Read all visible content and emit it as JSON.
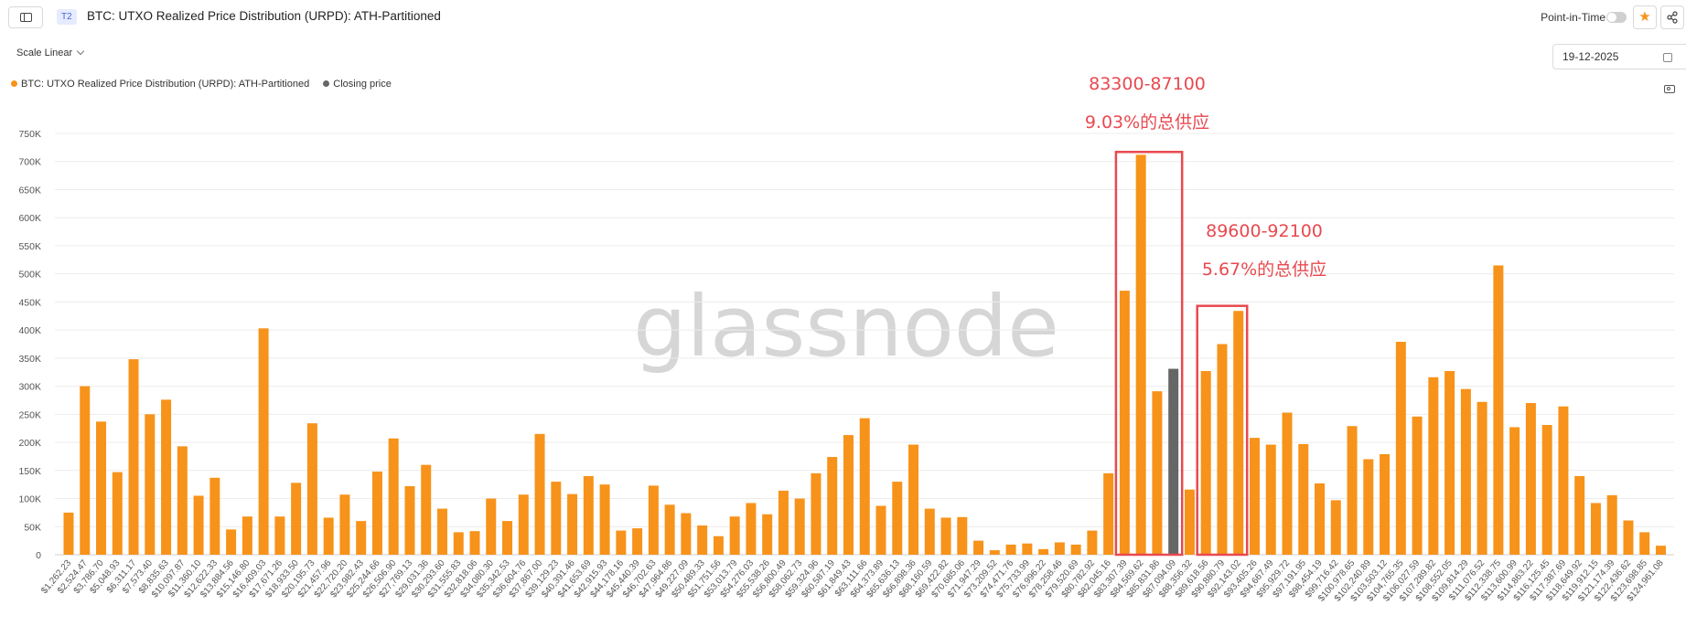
{
  "header": {
    "tier_badge": "T2",
    "title": "BTC: UTXO Realized Price Distribution (URPD): ATH-Partitioned",
    "point_in_time_label": "Point-in-Time",
    "point_in_time_enabled": false
  },
  "controls": {
    "scale_label": "Scale Linear",
    "date_value": "19-12-2025"
  },
  "legend": [
    {
      "label": "BTC: UTXO Realized Price Distribution (URPD): ATH-Partitioned",
      "color": "#f7931a"
    },
    {
      "label": "Closing price",
      "color": "#666666"
    }
  ],
  "watermark": "glassnode",
  "annotations": [
    {
      "range_label": "83300-87100",
      "supply_label": "9.03%的总供应"
    },
    {
      "range_label": "89600-92100",
      "supply_label": "5.67%的总供应"
    }
  ],
  "chart_data": {
    "type": "bar",
    "series_color": "#f7931a",
    "closing_price_color": "#666666",
    "annotation_color": "#e8494f",
    "grid": true,
    "ylim": [
      0,
      750000
    ],
    "y_ticks": [
      0,
      50000,
      100000,
      150000,
      200000,
      250000,
      300000,
      350000,
      400000,
      450000,
      500000,
      550000,
      600000,
      650000,
      700000,
      750000
    ],
    "y_tick_labels": [
      "0",
      "50K",
      "100K",
      "150K",
      "200K",
      "250K",
      "300K",
      "350K",
      "400K",
      "450K",
      "500K",
      "550K",
      "600K",
      "650K",
      "700K",
      "750K"
    ],
    "x_tick_labels": [
      "$1,262.23",
      "$2,524.47",
      "$3,786.70",
      "$5,048.93",
      "$6,311.17",
      "$7,573.40",
      "$8,835.63",
      "$10,097.87",
      "$11,360.10",
      "$12,622.33",
      "$13,884.56",
      "$15,146.80",
      "$16,409.03",
      "$17,671.26",
      "$18,933.50",
      "$20,195.73",
      "$21,457.96",
      "$22,720.20",
      "$23,982.43",
      "$25,244.66",
      "$26,506.90",
      "$27,769.13",
      "$29,031.36",
      "$30,293.60",
      "$31,555.83",
      "$32,818.06",
      "$34,080.30",
      "$35,342.53",
      "$36,604.76",
      "$37,867.00",
      "$39,129.23",
      "$40,391.46",
      "$41,653.69",
      "$42,915.93",
      "$44,178.16",
      "$45,440.39",
      "$46,702.63",
      "$47,964.86",
      "$49,227.09",
      "$50,489.33",
      "$51,751.56",
      "$53,013.79",
      "$54,276.03",
      "$55,538.26",
      "$56,800.49",
      "$58,062.73",
      "$59,324.96",
      "$60,587.19",
      "$61,849.43",
      "$63,111.66",
      "$64,373.89",
      "$65,636.13",
      "$66,898.36",
      "$68,160.59",
      "$69,422.82",
      "$70,685.06",
      "$71,947.29",
      "$73,209.52",
      "$74,471.76",
      "$75,733.99",
      "$76,996.22",
      "$78,258.46",
      "$79,520.69",
      "$80,782.92",
      "$82,045.16",
      "$83,307.39",
      "$84,569.62",
      "$85,831.86",
      "$87,094.09",
      "$88,356.32",
      "$89,618.56",
      "$90,880.79",
      "$92,143.02",
      "$93,405.26",
      "$94,667.49",
      "$95,929.72",
      "$97,191.95",
      "$98,454.19",
      "$99,716.42",
      "$100,978.65",
      "$102,240.89",
      "$103,503.12",
      "$104,765.35",
      "$106,027.59",
      "$107,289.82",
      "$108,552.05",
      "$109,814.29",
      "$111,076.52",
      "$112,338.75",
      "$113,600.99",
      "$114,863.22",
      "$116,125.45",
      "$117,387.69",
      "$118,649.92",
      "$119,912.15",
      "$121,174.39",
      "$122,436.62",
      "$123,698.85",
      "$124,961.08"
    ],
    "values": [
      75000,
      300000,
      237000,
      147000,
      348000,
      250000,
      276000,
      193000,
      105000,
      137000,
      45000,
      68000,
      403000,
      68000,
      128000,
      234000,
      66000,
      107000,
      60000,
      148000,
      207000,
      122000,
      160000,
      82000,
      40000,
      42000,
      100000,
      60000,
      107000,
      215000,
      130000,
      108000,
      140000,
      125000,
      43000,
      47000,
      123000,
      89000,
      74000,
      52000,
      33000,
      68000,
      92000,
      72000,
      114000,
      100000,
      145000,
      174000,
      213000,
      243000,
      87000,
      130000,
      196000,
      82000,
      66000,
      67000,
      25000,
      8000,
      18000,
      20000,
      10000,
      22000,
      18000,
      43000,
      145000,
      470000,
      712000,
      291000,
      331000,
      116000,
      327000,
      375000,
      434000,
      208000,
      196000,
      253000,
      197000,
      127000,
      97000,
      229000,
      170000,
      179000,
      379000,
      246000,
      316000,
      327000,
      295000,
      272000,
      515000,
      227000,
      270000,
      231000,
      264000,
      140000,
      92000,
      106000,
      61000,
      40000,
      16000
    ],
    "closing_price_index": 68,
    "highlight_ranges": [
      {
        "from_index": 65,
        "to_index": 68,
        "top_value": 717000
      },
      {
        "from_index": 70,
        "to_index": 72,
        "top_value": 443000
      }
    ]
  }
}
